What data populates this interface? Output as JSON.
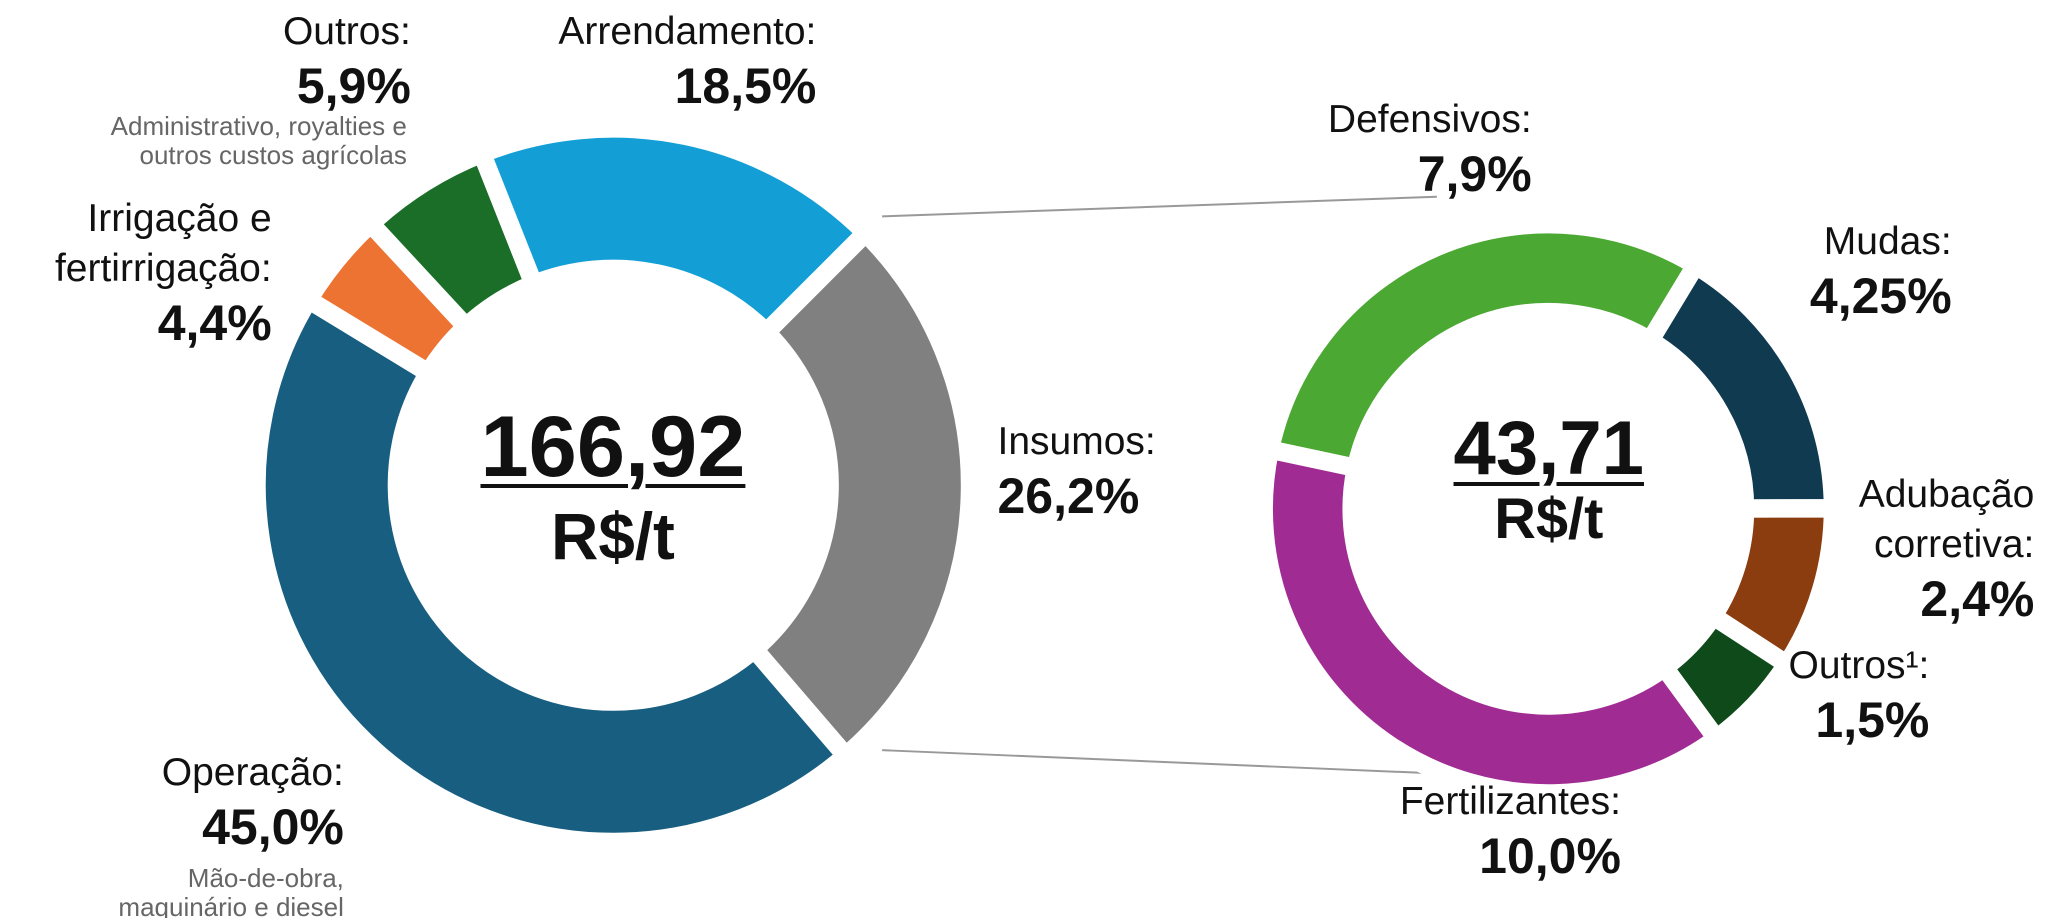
{
  "chart_data": [
    {
      "type": "donut",
      "categories": [
        "Insumos:",
        "Operação:",
        "Irrigação e\nfertirrigação:",
        "Outros:",
        "Arrendamento:"
      ],
      "values": [
        26.2,
        45.0,
        4.4,
        5.9,
        18.5
      ],
      "value_labels": [
        "26,2%",
        "45,0%",
        "4,4%",
        "5,9%",
        "18,5%"
      ],
      "colors": [
        "#808080",
        "#175e80",
        "#ec7332",
        "#1a6e27",
        "#139fd6"
      ],
      "annotations": [
        "Mão-de-obra,\nmaquinário e diesel",
        "Administrativo, royalties e\noutros custos agrícolas"
      ],
      "center_label": "166,92",
      "center_unit": "R$/t"
    },
    {
      "type": "donut",
      "categories": [
        "Defensivos:",
        "Mudas:",
        "Adubação\ncorretiva:",
        "Outros¹:",
        "Fertilizantes:"
      ],
      "values": [
        7.9,
        4.25,
        2.4,
        1.5,
        10.0
      ],
      "value_labels": [
        "7,9%",
        "4,25%",
        "2,4%",
        "1,5%",
        "10,0%"
      ],
      "colors": [
        "#4ba833",
        "#0f3a4f",
        "#8b3d0f",
        "#0f4a1a",
        "#a02b93"
      ],
      "center_label": "43,71",
      "center_unit": "R$/t"
    }
  ]
}
